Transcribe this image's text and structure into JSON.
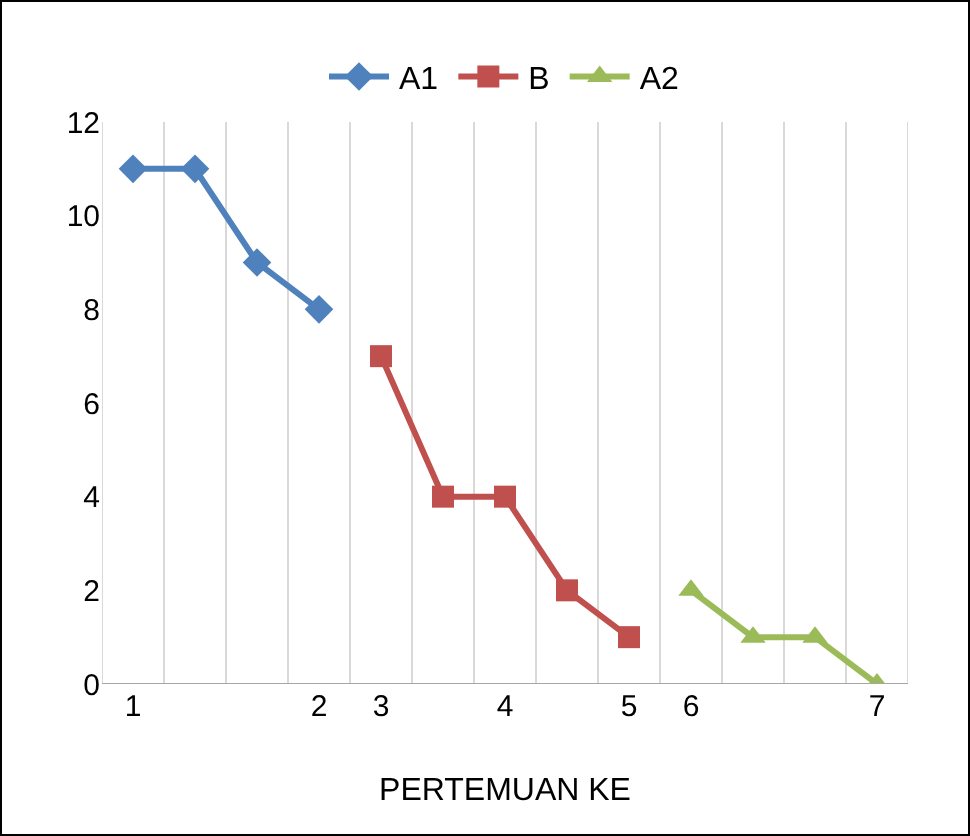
{
  "chart_data": {
    "type": "line",
    "xlabel": "PERTEMUAN KE",
    "categories": [
      "1",
      null,
      null,
      "2",
      "3",
      null,
      "4",
      null,
      "5",
      "6",
      null,
      null,
      "7"
    ],
    "series": [
      {
        "name": "A1",
        "color": "#4f81bd",
        "marker": "diamond",
        "values": [
          11,
          11,
          9,
          8,
          null,
          null,
          null,
          null,
          null,
          null,
          null,
          null,
          null
        ]
      },
      {
        "name": "B",
        "color": "#c0504d",
        "marker": "square",
        "values": [
          null,
          null,
          null,
          null,
          7,
          4,
          4,
          2,
          1,
          null,
          null,
          null,
          null
        ]
      },
      {
        "name": "A2",
        "color": "#9bbb59",
        "marker": "triangle",
        "values": [
          null,
          null,
          null,
          null,
          null,
          null,
          null,
          null,
          null,
          2,
          1,
          1,
          0
        ]
      }
    ],
    "ylim": [
      0,
      12
    ],
    "yticks": [
      0,
      2,
      4,
      6,
      8,
      10,
      12
    ],
    "grid": "x",
    "legend": "top"
  }
}
